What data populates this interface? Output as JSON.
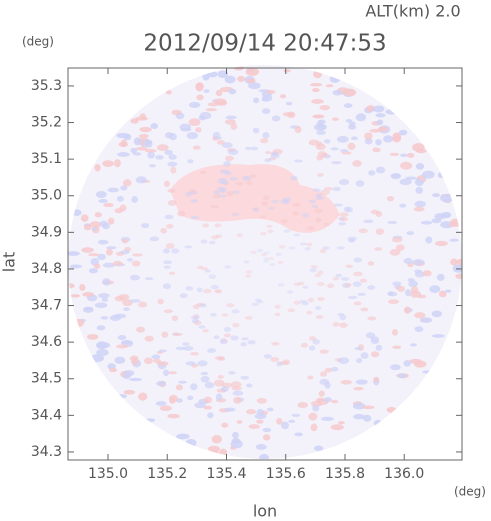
{
  "chart_data": {
    "type": "heatmap",
    "title": "2012/09/14 20:47:53",
    "annotation": "ALT(km) 2.0",
    "x_label": "lon",
    "y_label": "lat",
    "x_unit": "(deg)",
    "y_unit": "(deg)",
    "xlim": [
      134.865,
      136.195
    ],
    "xticks": [
      {
        "value": 135,
        "label": "135.0"
      },
      135.2,
      135.4,
      135.6,
      135.8,
      {
        "value": 136,
        "label": "136.0"
      }
    ],
    "ylim": [
      34.278,
      35.349
    ],
    "yticks": [
      34.3,
      34.4,
      34.5,
      34.6,
      34.7,
      34.8,
      34.9,
      {
        "value": 35,
        "label": "35.0"
      },
      35.1,
      35.2,
      35.3
    ]
  }
}
